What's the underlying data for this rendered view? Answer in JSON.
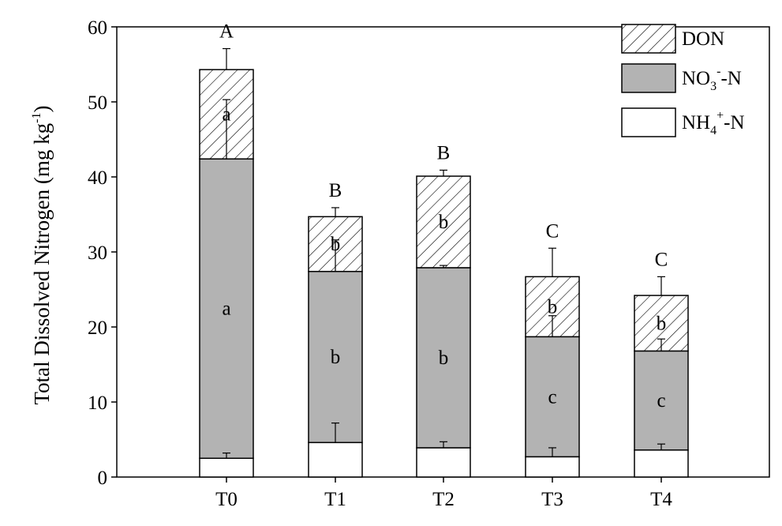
{
  "chart_data": {
    "type": "bar",
    "stacked": true,
    "title": "",
    "xlabel": "",
    "ylabel": {
      "main": "Total Dissolved Nitrogen (mg kg",
      "sup": "-1",
      "close": ")"
    },
    "ylim": [
      0,
      60
    ],
    "yticks": [
      "0",
      "10",
      "20",
      "30",
      "40",
      "50",
      "60"
    ],
    "categories": [
      "T0",
      "T1",
      "T2",
      "T3",
      "T4"
    ],
    "grid": false,
    "legend_position": "top-right",
    "series": [
      {
        "key": "nh4",
        "name": "NH4+-N",
        "legend": {
          "base": "NH",
          "sub": "4",
          "sup": "+",
          "suffix": "-N"
        },
        "fill": "white",
        "values": [
          2.5,
          4.6,
          3.9,
          2.7,
          3.6
        ],
        "errors": [
          0.7,
          2.6,
          0.8,
          1.2,
          0.8
        ],
        "letters": [
          "",
          "",
          "",
          "",
          ""
        ]
      },
      {
        "key": "no3",
        "name": "NO3--N",
        "legend": {
          "base": "NO",
          "sub": "3",
          "sup": "-",
          "suffix": "-N"
        },
        "fill": "gray",
        "values": [
          39.9,
          22.8,
          24.0,
          16.0,
          13.2
        ],
        "errors": [
          7.9,
          4.2,
          0.3,
          2.8,
          1.6
        ],
        "letters": [
          "a",
          "b",
          "b",
          "c",
          "c"
        ]
      },
      {
        "key": "don",
        "name": "DON",
        "legend": {
          "base": "DON",
          "sub": "",
          "sup": "",
          "suffix": ""
        },
        "fill": "hatch",
        "values": [
          11.9,
          7.3,
          12.2,
          8.0,
          7.4
        ],
        "errors": [
          2.8,
          1.2,
          0.8,
          3.8,
          2.5
        ],
        "letters": [
          "a",
          "b",
          "b",
          "b",
          "b"
        ]
      }
    ],
    "group_letters": [
      "A",
      "B",
      "B",
      "C",
      "C"
    ]
  },
  "colors": {
    "gray_fill": "#b3b3b3",
    "axis": "#000000",
    "hatch_line": "#000000"
  }
}
